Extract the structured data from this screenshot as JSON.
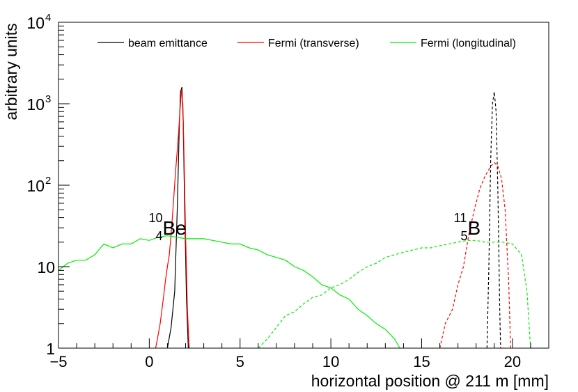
{
  "chart_data": {
    "type": "line",
    "title": "",
    "xlabel": "horizontal position @ 211 m [mm]",
    "ylabel": "arbitrary units",
    "xlim": [
      -5,
      22
    ],
    "ylim": [
      1,
      10000
    ],
    "yscale": "log",
    "grid": false,
    "legend_position": "top",
    "x_ticks": [
      {
        "value": -5,
        "label": "−5"
      },
      {
        "value": 0,
        "label": "0"
      },
      {
        "value": 5,
        "label": "5"
      },
      {
        "value": 10,
        "label": "10"
      },
      {
        "value": 15,
        "label": "15"
      },
      {
        "value": 20,
        "label": "20"
      }
    ],
    "y_ticks": [
      {
        "value": 1,
        "base": "1",
        "exp": ""
      },
      {
        "value": 10,
        "base": "10",
        "exp": ""
      },
      {
        "value": 100,
        "base": "10",
        "exp": "2"
      },
      {
        "value": 1000,
        "base": "10",
        "exp": "3"
      },
      {
        "value": 10000,
        "base": "10",
        "exp": "4"
      }
    ],
    "legend": [
      {
        "label": "beam emittance",
        "color": "#000000"
      },
      {
        "label": "Fermi (transverse)",
        "color": "#ff0000"
      },
      {
        "label": "Fermi (longitudinal)",
        "color": "#00ee00"
      }
    ],
    "annotations": [
      {
        "mass": "10",
        "charge": "4",
        "element": "Be",
        "x": 1.5,
        "y": 30
      },
      {
        "mass": "11",
        "charge": "5",
        "element": "B",
        "x": 18.3,
        "y": 30
      }
    ],
    "series": [
      {
        "name": "beam emittance",
        "isotope": "Be",
        "dash": false,
        "color": "#000000",
        "points": [
          [
            1.0,
            1
          ],
          [
            1.2,
            1.8
          ],
          [
            1.4,
            5
          ],
          [
            1.55,
            60
          ],
          [
            1.65,
            500
          ],
          [
            1.72,
            1400
          ],
          [
            1.8,
            1600
          ],
          [
            1.87,
            600
          ],
          [
            1.95,
            50
          ],
          [
            2.05,
            4
          ],
          [
            2.15,
            1
          ]
        ]
      },
      {
        "name": "Fermi (transverse)",
        "isotope": "Be",
        "dash": false,
        "color": "#ff0000",
        "points": [
          [
            0.35,
            1
          ],
          [
            0.5,
            1.5
          ],
          [
            0.6,
            2
          ],
          [
            0.7,
            3
          ],
          [
            0.8,
            4.5
          ],
          [
            0.9,
            7
          ],
          [
            1.0,
            10
          ],
          [
            1.1,
            14
          ],
          [
            1.2,
            25
          ],
          [
            1.3,
            50
          ],
          [
            1.45,
            150
          ],
          [
            1.6,
            400
          ],
          [
            1.7,
            900
          ],
          [
            1.78,
            1500
          ],
          [
            1.85,
            1000
          ],
          [
            1.92,
            200
          ],
          [
            2.0,
            25
          ],
          [
            2.1,
            3
          ],
          [
            2.2,
            1
          ]
        ]
      },
      {
        "name": "Fermi (longitudinal)",
        "isotope": "Be",
        "dash": false,
        "color": "#00ee00",
        "points": [
          [
            -5.0,
            9
          ],
          [
            -4.5,
            11
          ],
          [
            -4.0,
            12
          ],
          [
            -3.5,
            12
          ],
          [
            -3.0,
            14
          ],
          [
            -2.5,
            19
          ],
          [
            -2.0,
            17
          ],
          [
            -1.5,
            19
          ],
          [
            -1.0,
            19
          ],
          [
            -0.5,
            22
          ],
          [
            0.0,
            21
          ],
          [
            0.5,
            23
          ],
          [
            1.0,
            24
          ],
          [
            1.5,
            23
          ],
          [
            2.0,
            22
          ],
          [
            2.5,
            22
          ],
          [
            3.0,
            22
          ],
          [
            3.5,
            21
          ],
          [
            4.0,
            20
          ],
          [
            4.5,
            19
          ],
          [
            5.0,
            19
          ],
          [
            5.5,
            17
          ],
          [
            6.0,
            16
          ],
          [
            6.5,
            14
          ],
          [
            7.0,
            13
          ],
          [
            7.5,
            12
          ],
          [
            8.0,
            10
          ],
          [
            8.5,
            9
          ],
          [
            9.0,
            7.5
          ],
          [
            9.5,
            6
          ],
          [
            10.0,
            5.5
          ],
          [
            10.5,
            4.5
          ],
          [
            11.0,
            4
          ],
          [
            11.5,
            3
          ],
          [
            12.0,
            2.5
          ],
          [
            12.5,
            2
          ],
          [
            13.0,
            1.7
          ],
          [
            13.5,
            1.3
          ],
          [
            13.8,
            1
          ]
        ]
      },
      {
        "name": "beam emittance",
        "isotope": "B",
        "dash": true,
        "color": "#000000",
        "points": [
          [
            18.6,
            1
          ],
          [
            18.7,
            10
          ],
          [
            18.8,
            200
          ],
          [
            18.9,
            1000
          ],
          [
            19.0,
            1400
          ],
          [
            19.1,
            800
          ],
          [
            19.2,
            80
          ],
          [
            19.3,
            3
          ],
          [
            19.35,
            1
          ]
        ]
      },
      {
        "name": "Fermi (transverse)",
        "isotope": "B",
        "dash": true,
        "color": "#ff0000",
        "points": [
          [
            16.0,
            1
          ],
          [
            16.3,
            2
          ],
          [
            16.7,
            3
          ],
          [
            17.0,
            6
          ],
          [
            17.3,
            10
          ],
          [
            17.6,
            25
          ],
          [
            17.9,
            50
          ],
          [
            18.2,
            90
          ],
          [
            18.5,
            130
          ],
          [
            18.8,
            170
          ],
          [
            19.0,
            190
          ],
          [
            19.2,
            170
          ],
          [
            19.4,
            120
          ],
          [
            19.6,
            50
          ],
          [
            19.8,
            6
          ],
          [
            19.9,
            1
          ]
        ]
      },
      {
        "name": "Fermi (longitudinal)",
        "isotope": "B",
        "dash": true,
        "color": "#00ee00",
        "points": [
          [
            6.0,
            1
          ],
          [
            6.5,
            1.3
          ],
          [
            7.0,
            1.8
          ],
          [
            7.5,
            2.5
          ],
          [
            8.0,
            2.8
          ],
          [
            8.5,
            3.5
          ],
          [
            9.0,
            4.2
          ],
          [
            9.5,
            4.5
          ],
          [
            10.0,
            5.5
          ],
          [
            10.5,
            6
          ],
          [
            11.0,
            7
          ],
          [
            11.5,
            8.5
          ],
          [
            12.0,
            10
          ],
          [
            12.5,
            11
          ],
          [
            13.0,
            13
          ],
          [
            13.5,
            14
          ],
          [
            14.0,
            15
          ],
          [
            14.5,
            16
          ],
          [
            15.0,
            17
          ],
          [
            15.5,
            17
          ],
          [
            16.0,
            18
          ],
          [
            16.5,
            19
          ],
          [
            17.0,
            20
          ],
          [
            17.5,
            21
          ],
          [
            18.0,
            21
          ],
          [
            18.5,
            20
          ],
          [
            19.0,
            20
          ],
          [
            19.5,
            20
          ],
          [
            20.0,
            19
          ],
          [
            20.5,
            14
          ],
          [
            20.8,
            5
          ],
          [
            21.0,
            1
          ]
        ]
      }
    ]
  }
}
